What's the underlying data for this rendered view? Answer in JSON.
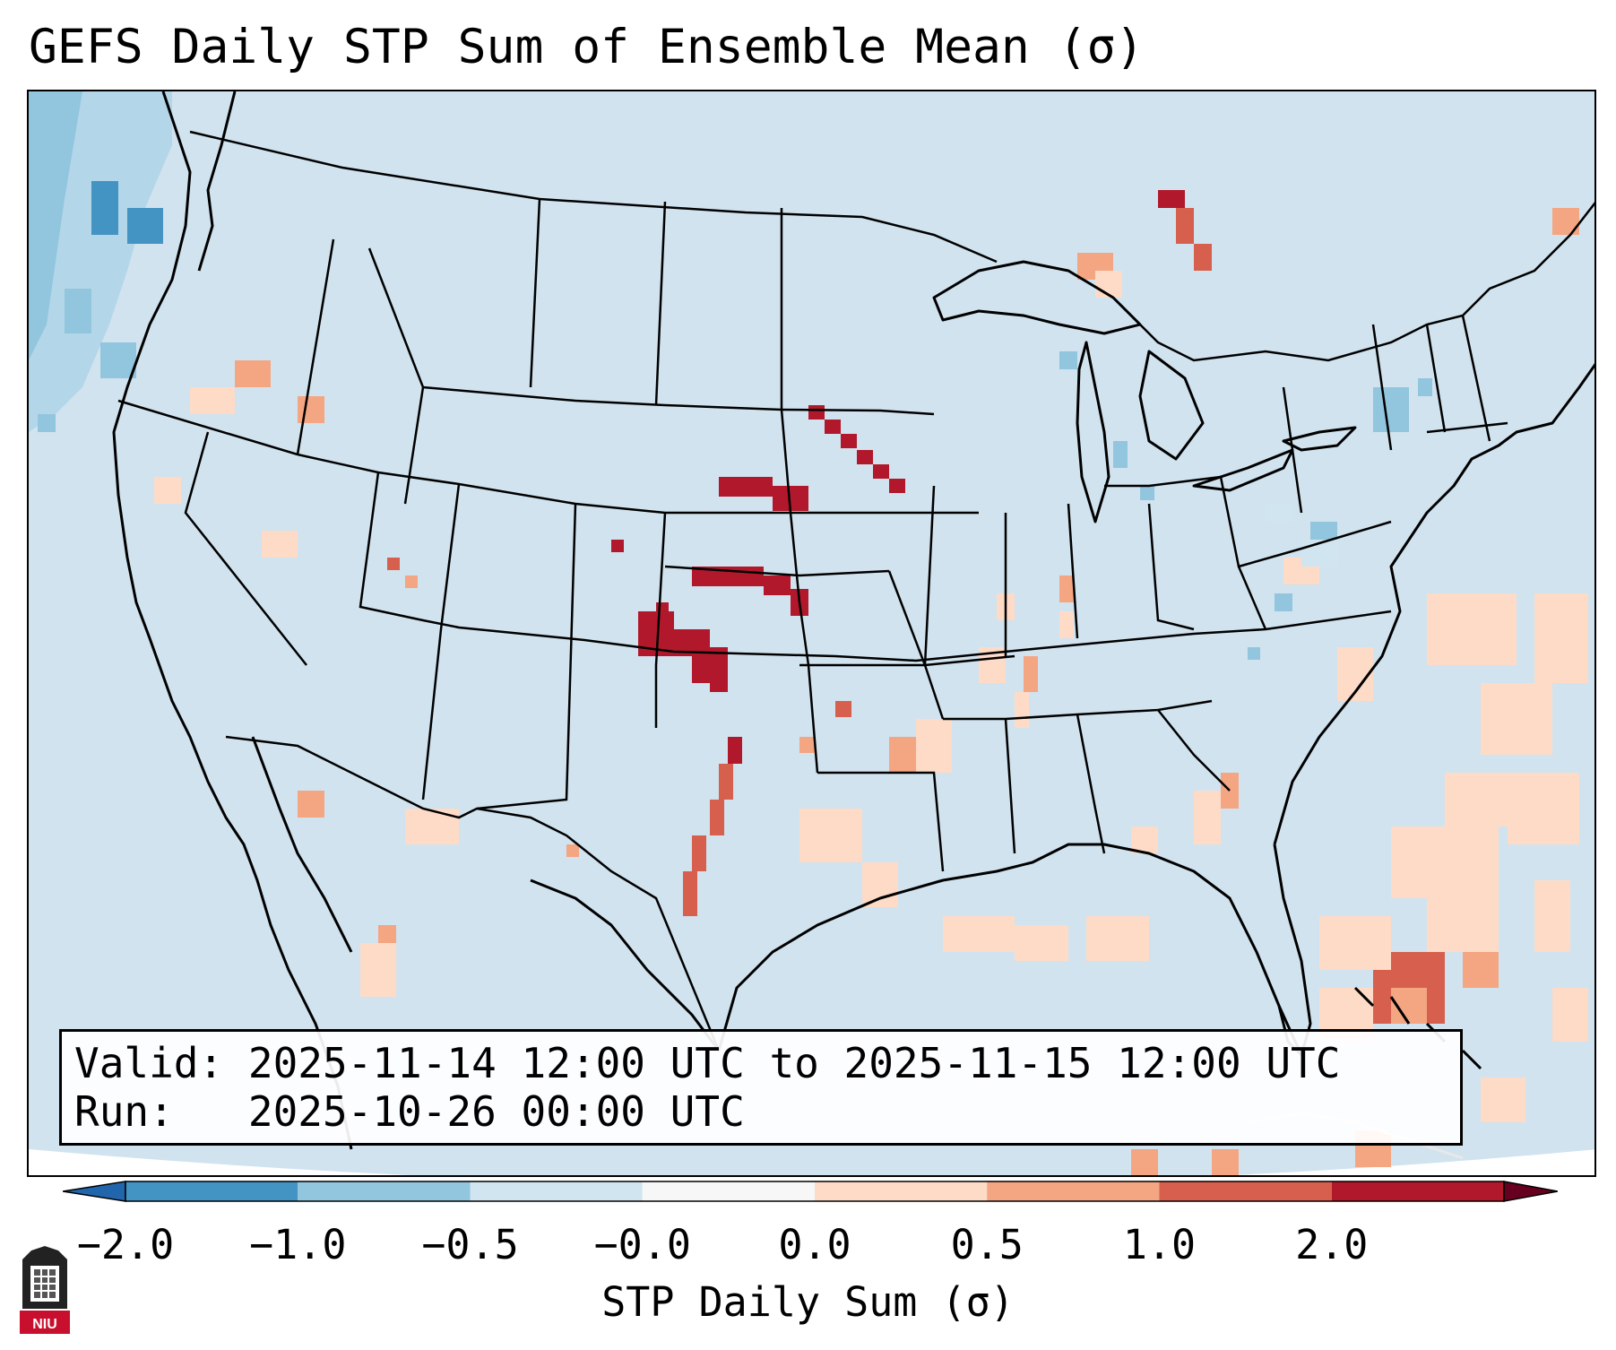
{
  "title": "GEFS Daily STP Sum of Ensemble Mean (σ)",
  "info": {
    "valid_label": "Valid:",
    "valid_value": "2025-11-14 12:00 UTC to 2025-11-15 12:00 UTC",
    "run_label": "Run:",
    "run_value": "2025-10-26 00:00 UTC"
  },
  "colorbar": {
    "label": "STP Daily Sum (σ)",
    "ticks": [
      "−2.0",
      "−1.0",
      "−0.5",
      "−0.0",
      "0.0",
      "0.5",
      "1.0",
      "2.0"
    ],
    "colors": [
      "#4393c3",
      "#92c5de",
      "#d1e5f0",
      "#f7f7f7",
      "#fddbc7",
      "#f4a582",
      "#d6604d",
      "#b2182b"
    ],
    "extend": "both"
  },
  "logo": {
    "text": "NIU"
  },
  "map": {
    "background_color": "#d1e3ef",
    "projection": "Lambert Conformal (CONUS)",
    "features": [
      "state borders",
      "country borders",
      "coastlines",
      "Great Lakes"
    ],
    "highlight_regions": [
      {
        "name": "Eastern Nebraska / Western Iowa",
        "level": "> 2.0"
      },
      {
        "name": "Western Kansas",
        "level": "> 2.0"
      },
      {
        "name": "Southeast Colorado / Oklahoma Panhandle",
        "level": "> 2.0"
      },
      {
        "name": "West Texas",
        "level": "1.0 to 2.0"
      },
      {
        "name": "Lake Superior (north shore)",
        "level": "> 2.0"
      },
      {
        "name": "Western Atlantic",
        "level": "0.0 to 1.0"
      }
    ]
  }
}
